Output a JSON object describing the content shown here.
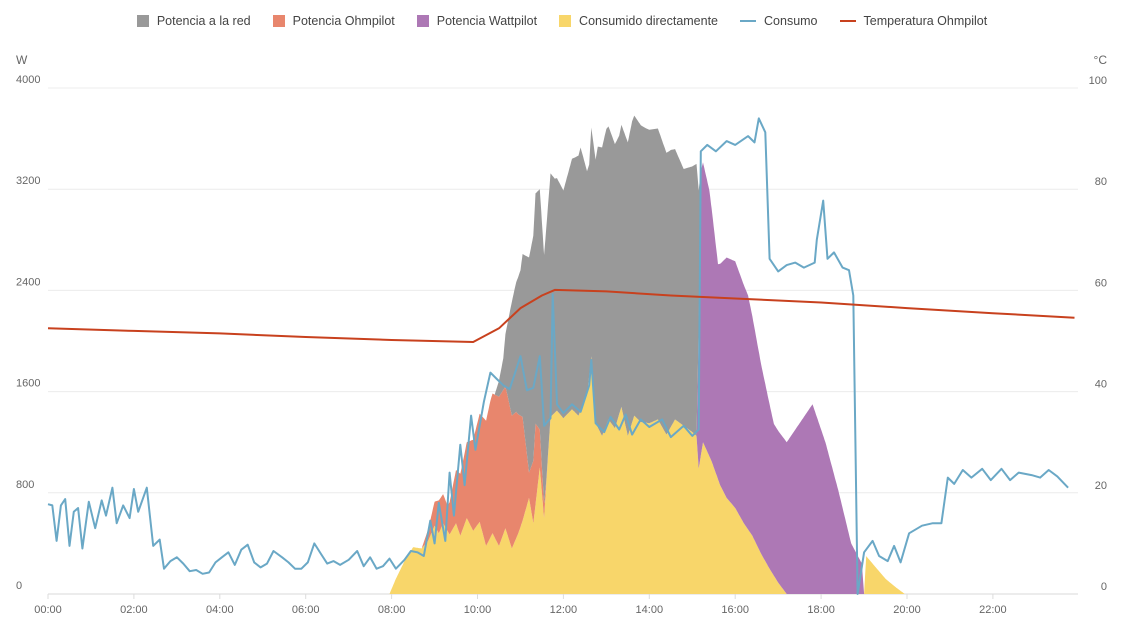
{
  "chart_data": {
    "type": "area",
    "title": "",
    "xlabel": "",
    "ylabel": "W",
    "y2label": "°C",
    "xlim": [
      0,
      24
    ],
    "ylim": [
      0,
      4000
    ],
    "y2lim": [
      0,
      100
    ],
    "grid": true,
    "legend_position": "top-center",
    "x_ticks": [
      "00:00",
      "02:00",
      "04:00",
      "06:00",
      "08:00",
      "10:00",
      "12:00",
      "14:00",
      "16:00",
      "18:00",
      "20:00",
      "22:00"
    ],
    "y_ticks": [
      "0",
      "800",
      "1600",
      "2400",
      "3200",
      "4000"
    ],
    "y2_ticks": [
      "0",
      "20",
      "40",
      "60",
      "80",
      "100"
    ],
    "legend": [
      {
        "name": "Potencia a la red",
        "kind": "area",
        "color": "#999999"
      },
      {
        "name": "Potencia Ohmpilot",
        "kind": "area",
        "color": "#E8866D"
      },
      {
        "name": "Potencia Wattpilot",
        "kind": "area",
        "color": "#AD78B5"
      },
      {
        "name": "Consumido directamente",
        "kind": "area",
        "color": "#F8D66A"
      },
      {
        "name": "Consumo",
        "kind": "line",
        "color": "#6AA8C6"
      },
      {
        "name": "Temperatura Ohmpilot",
        "kind": "line",
        "color": "#C8411E"
      }
    ],
    "stack_order": [
      "Consumido directamente",
      "Potencia Ohmpilot",
      "Potencia Wattpilot",
      "Potencia a la red"
    ],
    "series": [
      {
        "name": "Consumido directamente",
        "axis": "left",
        "points": [
          [
            7.95,
            0
          ],
          [
            8.1,
            120
          ],
          [
            8.3,
            260
          ],
          [
            8.5,
            370
          ],
          [
            8.7,
            360
          ],
          [
            8.85,
            420
          ],
          [
            9.0,
            540
          ],
          [
            9.1,
            480
          ],
          [
            9.2,
            560
          ],
          [
            9.35,
            470
          ],
          [
            9.5,
            560
          ],
          [
            9.6,
            460
          ],
          [
            9.75,
            600
          ],
          [
            9.9,
            500
          ],
          [
            10.05,
            570
          ],
          [
            10.2,
            380
          ],
          [
            10.35,
            480
          ],
          [
            10.5,
            380
          ],
          [
            10.65,
            520
          ],
          [
            10.8,
            360
          ],
          [
            10.95,
            480
          ],
          [
            11.05,
            580
          ],
          [
            11.2,
            760
          ],
          [
            11.3,
            560
          ],
          [
            11.45,
            1000
          ],
          [
            11.55,
            600
          ],
          [
            11.7,
            1400
          ],
          [
            11.85,
            1450
          ],
          [
            12.0,
            1390
          ],
          [
            12.2,
            1460
          ],
          [
            12.35,
            1410
          ],
          [
            12.55,
            1570
          ],
          [
            12.65,
            1880
          ],
          [
            12.75,
            1350
          ],
          [
            12.9,
            1250
          ],
          [
            13.05,
            1380
          ],
          [
            13.2,
            1310
          ],
          [
            13.35,
            1480
          ],
          [
            13.5,
            1250
          ],
          [
            13.65,
            1410
          ],
          [
            13.8,
            1360
          ],
          [
            14.0,
            1350
          ],
          [
            14.2,
            1380
          ],
          [
            14.4,
            1260
          ],
          [
            14.6,
            1380
          ],
          [
            14.8,
            1330
          ],
          [
            15.0,
            1280
          ],
          [
            15.1,
            1250
          ],
          [
            15.15,
            990
          ],
          [
            15.25,
            1200
          ],
          [
            15.45,
            1050
          ],
          [
            15.65,
            860
          ],
          [
            15.8,
            760
          ],
          [
            16.0,
            680
          ],
          [
            16.2,
            560
          ],
          [
            16.4,
            460
          ],
          [
            16.6,
            320
          ],
          [
            16.8,
            200
          ],
          [
            17.0,
            90
          ],
          [
            17.2,
            0
          ],
          [
            19.0,
            0
          ],
          [
            19.05,
            300
          ],
          [
            19.25,
            220
          ],
          [
            19.5,
            120
          ],
          [
            19.75,
            50
          ],
          [
            19.95,
            0
          ]
        ]
      },
      {
        "name": "Potencia Ohmpilot",
        "axis": "left",
        "points": [
          [
            8.7,
            0
          ],
          [
            8.9,
            120
          ],
          [
            9.1,
            260
          ],
          [
            9.3,
            200
          ],
          [
            9.5,
            420
          ],
          [
            9.7,
            560
          ],
          [
            9.9,
            720
          ],
          [
            10.1,
            900
          ],
          [
            10.3,
            1080
          ],
          [
            10.5,
            1180
          ],
          [
            10.7,
            1100
          ],
          [
            10.9,
            1000
          ],
          [
            11.05,
            820
          ],
          [
            11.2,
            200
          ],
          [
            11.35,
            640
          ],
          [
            11.45,
            300
          ],
          [
            11.6,
            20
          ],
          [
            11.7,
            0
          ]
        ]
      },
      {
        "name": "Potencia Wattpilot",
        "axis": "left",
        "points": [
          [
            15.1,
            0
          ],
          [
            15.2,
            2250
          ],
          [
            15.4,
            2100
          ],
          [
            15.6,
            1700
          ],
          [
            15.8,
            1900
          ],
          [
            16.0,
            1950
          ],
          [
            16.3,
            1850
          ],
          [
            16.6,
            1500
          ],
          [
            16.9,
            1200
          ],
          [
            17.2,
            1200
          ],
          [
            17.5,
            1350
          ],
          [
            17.8,
            1500
          ],
          [
            18.1,
            1200
          ],
          [
            18.4,
            820
          ],
          [
            18.7,
            400
          ],
          [
            18.95,
            240
          ],
          [
            19.0,
            0
          ]
        ]
      },
      {
        "name": "Potencia a la red",
        "axis": "left",
        "points": [
          [
            10.4,
            0
          ],
          [
            10.6,
            250
          ],
          [
            10.8,
            900
          ],
          [
            11.0,
            1150
          ],
          [
            11.2,
            1700
          ],
          [
            11.45,
            1900
          ],
          [
            11.6,
            2000
          ],
          [
            11.8,
            1850
          ],
          [
            12.0,
            1800
          ],
          [
            12.2,
            1980
          ],
          [
            12.4,
            2080
          ],
          [
            12.6,
            1670
          ],
          [
            12.8,
            2220
          ],
          [
            13.0,
            2340
          ],
          [
            13.3,
            2200
          ],
          [
            13.6,
            2380
          ],
          [
            13.9,
            2330
          ],
          [
            14.2,
            2300
          ],
          [
            14.5,
            2190
          ],
          [
            14.8,
            2030
          ],
          [
            15.0,
            2100
          ],
          [
            15.1,
            2150
          ],
          [
            15.2,
            0
          ]
        ]
      },
      {
        "name": "Consumo",
        "axis": "left",
        "points": [
          [
            0,
            710
          ],
          [
            0.1,
            700
          ],
          [
            0.2,
            420
          ],
          [
            0.3,
            700
          ],
          [
            0.4,
            750
          ],
          [
            0.5,
            380
          ],
          [
            0.6,
            650
          ],
          [
            0.7,
            680
          ],
          [
            0.8,
            360
          ],
          [
            0.95,
            730
          ],
          [
            1.1,
            520
          ],
          [
            1.25,
            740
          ],
          [
            1.35,
            620
          ],
          [
            1.5,
            840
          ],
          [
            1.6,
            560
          ],
          [
            1.75,
            700
          ],
          [
            1.9,
            600
          ],
          [
            2.0,
            830
          ],
          [
            2.1,
            650
          ],
          [
            2.3,
            840
          ],
          [
            2.45,
            380
          ],
          [
            2.6,
            430
          ],
          [
            2.7,
            200
          ],
          [
            2.85,
            260
          ],
          [
            3.0,
            290
          ],
          [
            3.15,
            240
          ],
          [
            3.3,
            180
          ],
          [
            3.45,
            190
          ],
          [
            3.6,
            160
          ],
          [
            3.75,
            170
          ],
          [
            3.9,
            250
          ],
          [
            4.05,
            290
          ],
          [
            4.2,
            330
          ],
          [
            4.35,
            230
          ],
          [
            4.5,
            350
          ],
          [
            4.65,
            390
          ],
          [
            4.8,
            250
          ],
          [
            4.95,
            210
          ],
          [
            5.1,
            240
          ],
          [
            5.25,
            340
          ],
          [
            5.45,
            290
          ],
          [
            5.6,
            250
          ],
          [
            5.75,
            200
          ],
          [
            5.9,
            200
          ],
          [
            6.05,
            250
          ],
          [
            6.2,
            400
          ],
          [
            6.35,
            320
          ],
          [
            6.5,
            240
          ],
          [
            6.65,
            260
          ],
          [
            6.8,
            230
          ],
          [
            7.0,
            270
          ],
          [
            7.2,
            340
          ],
          [
            7.35,
            220
          ],
          [
            7.5,
            290
          ],
          [
            7.65,
            200
          ],
          [
            7.8,
            220
          ],
          [
            7.95,
            280
          ],
          [
            8.1,
            200
          ],
          [
            8.3,
            270
          ],
          [
            8.45,
            340
          ],
          [
            8.6,
            330
          ],
          [
            8.75,
            300
          ],
          [
            8.9,
            580
          ],
          [
            9.0,
            400
          ],
          [
            9.1,
            720
          ],
          [
            9.25,
            420
          ],
          [
            9.35,
            960
          ],
          [
            9.45,
            620
          ],
          [
            9.6,
            1180
          ],
          [
            9.7,
            860
          ],
          [
            9.85,
            1410
          ],
          [
            9.95,
            1140
          ],
          [
            10.15,
            1520
          ],
          [
            10.3,
            1750
          ],
          [
            10.45,
            1700
          ],
          [
            10.6,
            1650
          ],
          [
            10.75,
            1620
          ],
          [
            11.0,
            1880
          ],
          [
            11.15,
            1610
          ],
          [
            11.3,
            1630
          ],
          [
            11.45,
            1880
          ],
          [
            11.55,
            1330
          ],
          [
            11.7,
            1390
          ],
          [
            11.75,
            2370
          ],
          [
            11.85,
            1500
          ],
          [
            12.0,
            1430
          ],
          [
            12.2,
            1500
          ],
          [
            12.4,
            1440
          ],
          [
            12.6,
            1650
          ],
          [
            12.65,
            1850
          ],
          [
            12.75,
            1350
          ],
          [
            12.95,
            1280
          ],
          [
            13.1,
            1400
          ],
          [
            13.3,
            1300
          ],
          [
            13.45,
            1420
          ],
          [
            13.6,
            1260
          ],
          [
            13.8,
            1380
          ],
          [
            14.0,
            1320
          ],
          [
            14.3,
            1380
          ],
          [
            14.5,
            1240
          ],
          [
            14.8,
            1330
          ],
          [
            15.0,
            1250
          ],
          [
            15.15,
            1300
          ],
          [
            15.2,
            3500
          ],
          [
            15.35,
            3550
          ],
          [
            15.55,
            3500
          ],
          [
            15.8,
            3580
          ],
          [
            16.0,
            3550
          ],
          [
            16.3,
            3620
          ],
          [
            16.45,
            3570
          ],
          [
            16.55,
            3760
          ],
          [
            16.7,
            3650
          ],
          [
            16.8,
            2650
          ],
          [
            17.0,
            2550
          ],
          [
            17.2,
            2600
          ],
          [
            17.4,
            2620
          ],
          [
            17.6,
            2580
          ],
          [
            17.85,
            2620
          ],
          [
            17.9,
            2800
          ],
          [
            18.05,
            3110
          ],
          [
            18.15,
            2650
          ],
          [
            18.3,
            2700
          ],
          [
            18.5,
            2580
          ],
          [
            18.65,
            2560
          ],
          [
            18.75,
            2360
          ],
          [
            18.85,
            0
          ],
          [
            19.0,
            330
          ],
          [
            19.2,
            420
          ],
          [
            19.35,
            300
          ],
          [
            19.55,
            260
          ],
          [
            19.7,
            380
          ],
          [
            19.85,
            250
          ],
          [
            20.05,
            480
          ],
          [
            20.35,
            540
          ],
          [
            20.6,
            560
          ],
          [
            20.8,
            560
          ],
          [
            20.95,
            920
          ],
          [
            21.1,
            870
          ],
          [
            21.3,
            980
          ],
          [
            21.5,
            920
          ],
          [
            21.75,
            990
          ],
          [
            21.95,
            900
          ],
          [
            22.2,
            990
          ],
          [
            22.4,
            900
          ],
          [
            22.6,
            960
          ],
          [
            22.9,
            940
          ],
          [
            23.1,
            920
          ],
          [
            23.3,
            980
          ],
          [
            23.5,
            930
          ],
          [
            23.75,
            840
          ]
        ]
      },
      {
        "name": "Temperatura Ohmpilot",
        "axis": "right",
        "points": [
          [
            0,
            52.5
          ],
          [
            2,
            52.0
          ],
          [
            4,
            51.5
          ],
          [
            6,
            50.8
          ],
          [
            8,
            50.2
          ],
          [
            9.9,
            49.8
          ],
          [
            10.5,
            52.5
          ],
          [
            11.0,
            56.5
          ],
          [
            11.5,
            59.0
          ],
          [
            11.8,
            60.1
          ],
          [
            13.0,
            59.8
          ],
          [
            14.5,
            59.0
          ],
          [
            16.0,
            58.4
          ],
          [
            18.0,
            57.6
          ],
          [
            20.0,
            56.5
          ],
          [
            22.0,
            55.5
          ],
          [
            23.9,
            54.6
          ]
        ]
      }
    ]
  }
}
